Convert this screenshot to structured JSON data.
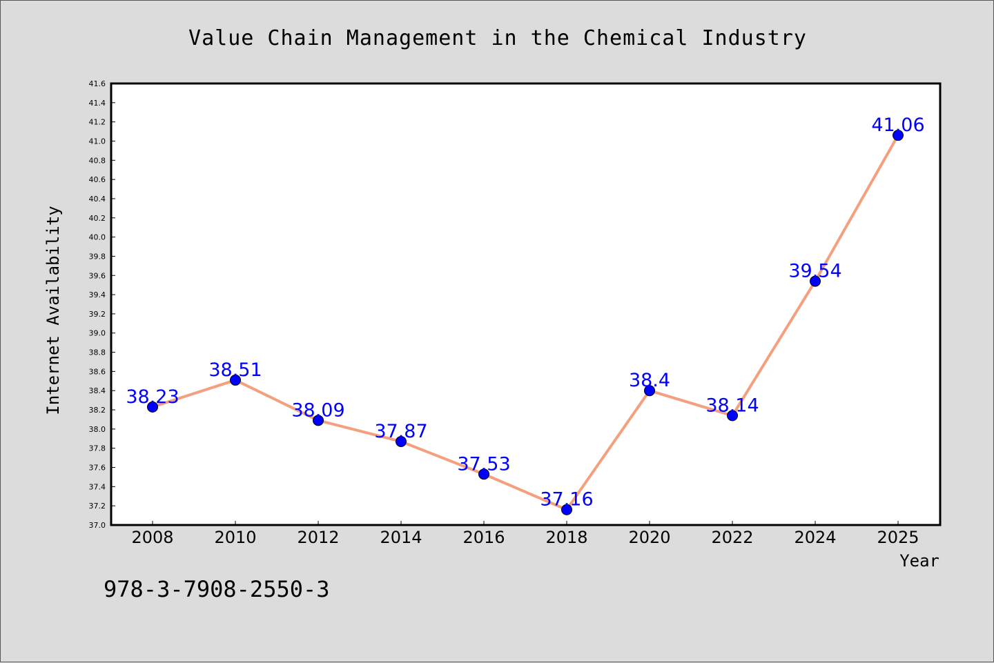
{
  "chart_data": {
    "type": "line",
    "title": "Value Chain Management in the Chemical Industry",
    "xlabel": "Year",
    "ylabel": "Internet Availability",
    "categories": [
      "2008",
      "2010",
      "2012",
      "2014",
      "2016",
      "2018",
      "2020",
      "2022",
      "2024",
      "2025"
    ],
    "values": [
      38.23,
      38.51,
      38.09,
      37.87,
      37.53,
      37.16,
      38.4,
      38.14,
      39.54,
      41.06
    ],
    "data_labels": [
      "38.23",
      "38.51",
      "38.09",
      "37.87",
      "37.53",
      "37.16",
      "38.4",
      "38.14",
      "39.54",
      "41.06"
    ],
    "ylim": [
      37.0,
      41.6
    ],
    "yticks": [
      "37.0",
      "37.2",
      "37.4",
      "37.6",
      "37.8",
      "38.0",
      "38.2",
      "38.4",
      "38.6",
      "38.8",
      "39.0",
      "39.2",
      "39.4",
      "39.6",
      "39.8",
      "40.0",
      "40.2",
      "40.4",
      "40.6",
      "40.8",
      "41.0",
      "41.2",
      "41.4",
      "41.6"
    ],
    "grid": false,
    "line_color": "#f4a07e",
    "marker_color": "#0000ff",
    "label_color": "#0000ff",
    "background": "#dcdcdc",
    "plot_background": "#ffffff"
  },
  "footer": {
    "isbn": "978-3-7908-2550-3"
  }
}
